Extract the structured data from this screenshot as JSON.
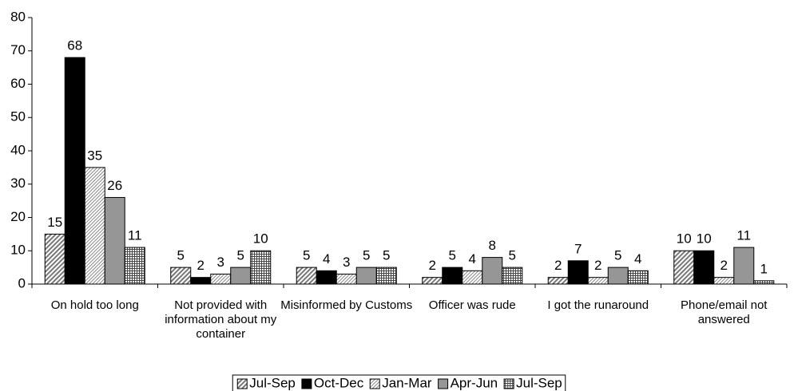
{
  "chart_data": {
    "type": "bar",
    "categories": [
      "On hold too long",
      "Not provided with information about my container",
      "Misinformed by Customs",
      "Officer was rude",
      "I got the runaround",
      "Phone/email not answered"
    ],
    "series": [
      {
        "name": "Jul-Sep",
        "color": "#c0c0c0",
        "pattern": "hatch",
        "values": [
          15,
          5,
          5,
          2,
          2,
          10
        ]
      },
      {
        "name": "Oct-Dec",
        "color": "#000000",
        "pattern": "solid",
        "values": [
          68,
          2,
          4,
          5,
          7,
          10
        ]
      },
      {
        "name": "Jan-Mar",
        "color": "#d0d0d0",
        "pattern": "finehatch",
        "values": [
          35,
          3,
          3,
          4,
          2,
          2
        ]
      },
      {
        "name": "Apr-Jun",
        "color": "#969696",
        "pattern": "solid",
        "values": [
          26,
          5,
          5,
          8,
          5,
          11
        ]
      },
      {
        "name": "Jul-Sep",
        "color": "#ffffff",
        "pattern": "grid",
        "values": [
          11,
          10,
          5,
          5,
          4,
          1
        ]
      }
    ],
    "ylim": [
      0,
      80
    ],
    "yticks": [
      0,
      10,
      20,
      30,
      40,
      50,
      60,
      70,
      80
    ],
    "legend": "bottom"
  }
}
